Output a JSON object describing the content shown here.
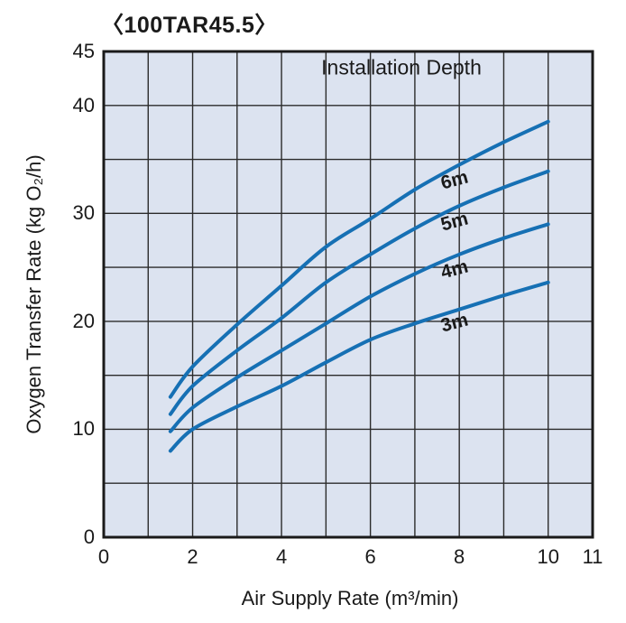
{
  "title": "〈100TAR45.5〉",
  "chart_data": {
    "type": "line",
    "title": "Installation Depth",
    "xlabel": "Air Supply Rate (m³/min)",
    "ylabel": "Oxygen Transfer Rate (kg O₂/h)",
    "xlim": [
      0,
      11
    ],
    "ylim": [
      0,
      45
    ],
    "x_ticks": [
      0,
      2,
      4,
      6,
      8,
      10,
      11
    ],
    "y_ticks": [
      0,
      10,
      20,
      30,
      40,
      45
    ],
    "x_grid_step": 1,
    "y_grid_step": 5,
    "grid": true,
    "legend_position": "labels-on-curves",
    "x": [
      1.5,
      2,
      3,
      4,
      5,
      6,
      7,
      8,
      9,
      10
    ],
    "series": [
      {
        "name": "6m",
        "values": [
          13,
          15.8,
          19.7,
          23.3,
          26.9,
          29.5,
          32.2,
          34.5,
          36.6,
          38.5
        ],
        "label_at": [
          7.9,
          33.0
        ]
      },
      {
        "name": "5m",
        "values": [
          11.4,
          14.0,
          17.3,
          20.3,
          23.6,
          26.2,
          28.6,
          30.7,
          32.4,
          33.9
        ],
        "label_at": [
          7.9,
          29.2
        ]
      },
      {
        "name": "4m",
        "values": [
          9.8,
          12.0,
          14.8,
          17.3,
          19.8,
          22.3,
          24.4,
          26.2,
          27.7,
          29.0
        ],
        "label_at": [
          7.9,
          24.8
        ]
      },
      {
        "name": "3m",
        "values": [
          8.0,
          10.0,
          12.1,
          14.0,
          16.2,
          18.3,
          19.8,
          21.1,
          22.4,
          23.6
        ],
        "label_at": [
          7.9,
          19.8
        ]
      }
    ],
    "colors": {
      "line": "#1670b4",
      "plot_bg": "#dce3f0",
      "grid": "#2b2b2b",
      "border": "#1a1a1a",
      "text": "#1a1a1a"
    }
  }
}
